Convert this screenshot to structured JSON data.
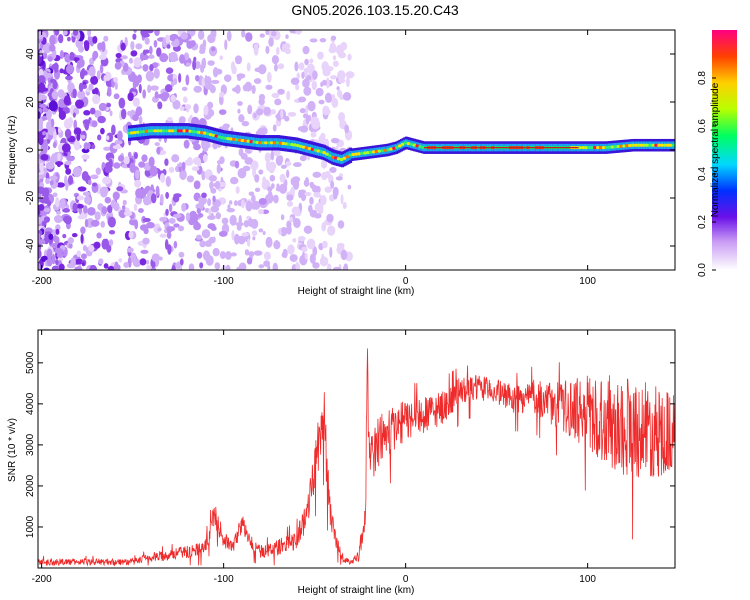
{
  "title": "GN05.2026.103.15.20.C43",
  "colors": {
    "snr_line": "#ee2a2a",
    "axis": "#000000"
  },
  "chart_data": [
    {
      "type": "heatmap",
      "xlabel": "Height of straight line (km)",
      "ylabel": "Frequency (Hz)",
      "xlim": [
        -202,
        148
      ],
      "ylim": [
        -50,
        50
      ],
      "xticks": [
        -200,
        -100,
        0,
        100
      ],
      "yticks": [
        -40,
        -20,
        0,
        20,
        40
      ],
      "colorbar": {
        "label": "Normalized spectral amplitude",
        "range": [
          0,
          1
        ],
        "ticks": [
          0.0,
          0.2,
          0.4,
          0.6,
          0.8
        ]
      },
      "ridge": {
        "x": [
          -152,
          -140,
          -120,
          -110,
          -100,
          -90,
          -80,
          -70,
          -60,
          -50,
          -45,
          -40,
          -35,
          -30,
          -20,
          -10,
          -5,
          0,
          5,
          10,
          30,
          60,
          90,
          110,
          125,
          140,
          148
        ],
        "freq": [
          7,
          8,
          8,
          7,
          5,
          4,
          3,
          3,
          2,
          0,
          -1,
          -3,
          -4,
          -2,
          -1,
          0,
          1,
          3,
          2,
          1,
          1,
          1,
          1,
          1,
          2,
          2,
          2
        ]
      },
      "noise_region_x": [
        -202,
        -30
      ]
    },
    {
      "type": "line",
      "xlabel": "Height of straight line (km)",
      "ylabel": "SNR (10 * v/v)",
      "xlim": [
        -202,
        148
      ],
      "ylim": [
        0,
        5800
      ],
      "xticks": [
        -200,
        -100,
        0,
        100
      ],
      "yticks": [
        1000,
        2000,
        3000,
        4000,
        5000
      ],
      "series": [
        {
          "name": "SNR",
          "envelope_x": [
            -202,
            -150,
            -140,
            -120,
            -110,
            -105,
            -100,
            -95,
            -90,
            -85,
            -80,
            -70,
            -60,
            -55,
            -50,
            -45,
            -42,
            -38,
            -34,
            -30,
            -26,
            -22,
            -21,
            -20,
            -15,
            -10,
            0,
            10,
            20,
            30,
            40,
            50,
            60,
            70,
            80,
            90,
            100,
            110,
            120,
            130,
            140,
            148
          ],
          "envelope_y": [
            150,
            150,
            250,
            400,
            500,
            1300,
            700,
            500,
            1100,
            600,
            400,
            500,
            700,
            1200,
            2500,
            3800,
            1500,
            600,
            200,
            150,
            300,
            1200,
            5600,
            2600,
            3100,
            3300,
            3600,
            3700,
            3900,
            4300,
            4400,
            4300,
            4100,
            4200,
            4000,
            3900,
            3800,
            3600,
            3500,
            3400,
            3300,
            3300
          ],
          "spread_y": [
            80,
            80,
            120,
            150,
            200,
            300,
            200,
            150,
            250,
            200,
            150,
            200,
            250,
            400,
            600,
            800,
            500,
            200,
            80,
            60,
            150,
            400,
            200,
            600,
            700,
            600,
            500,
            450,
            400,
            350,
            300,
            300,
            350,
            400,
            500,
            700,
            900,
            1100,
            1300,
            1200,
            1100,
            1000
          ]
        }
      ]
    }
  ]
}
